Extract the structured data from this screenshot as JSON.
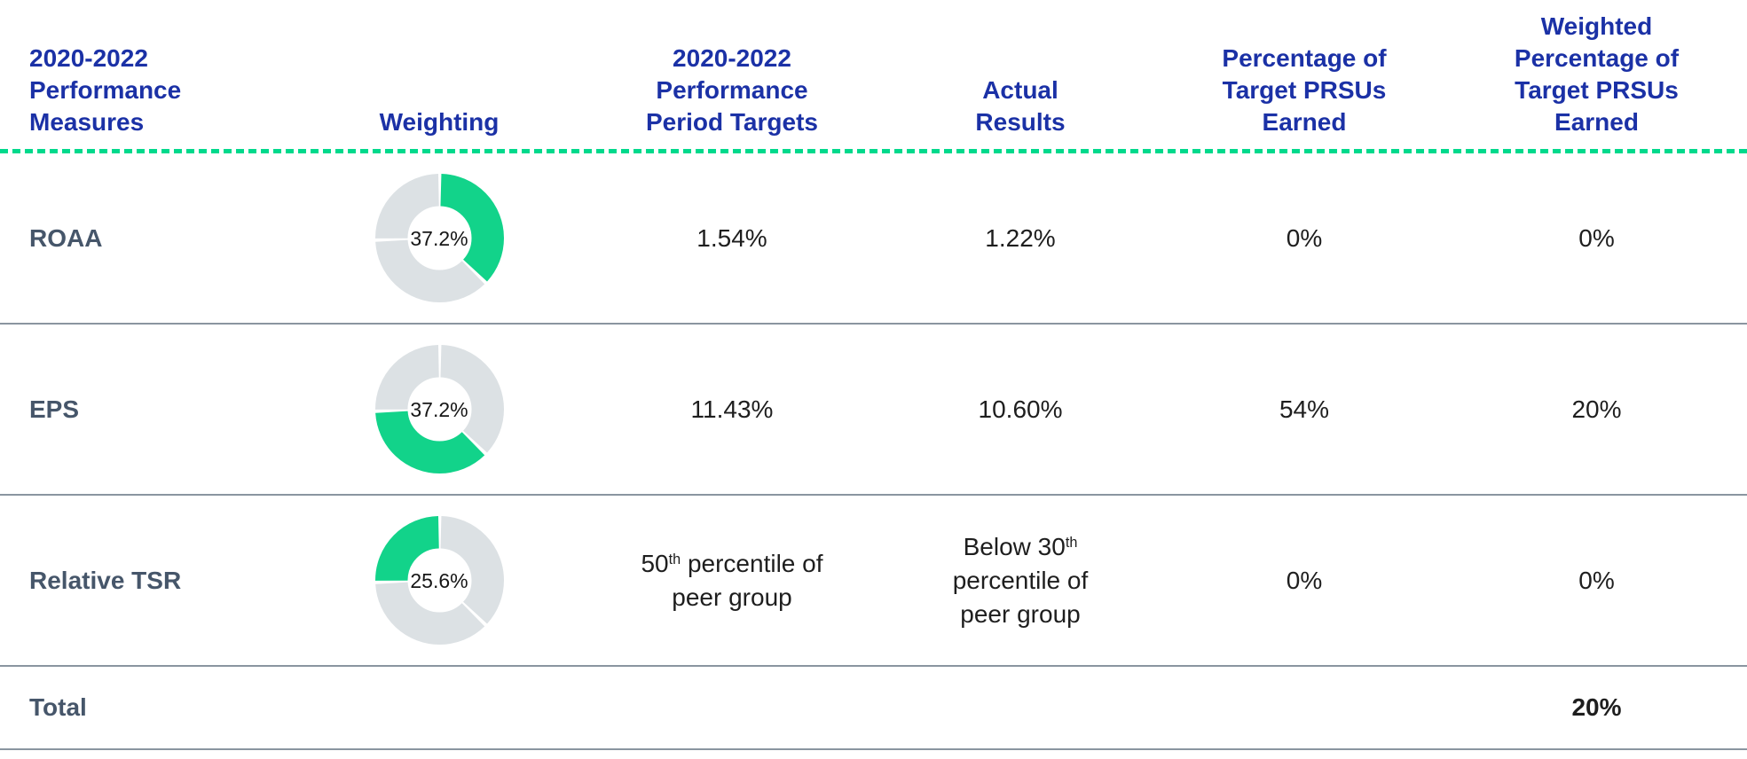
{
  "colors": {
    "header_blue": "#1B31A6",
    "slate_label": "#46566A",
    "body_text": "#1E1E1E",
    "donut_green": "#12D38A",
    "donut_gray": "#DCE1E4",
    "dash_green": "#00D98C",
    "divider_gray": "#8A95A0"
  },
  "header": {
    "columns": [
      {
        "id": "measures",
        "tokens": [
          "2020-2022",
          {
            "br": true
          },
          "Performance",
          {
            "br": true
          },
          "Measures"
        ]
      },
      {
        "id": "weighting",
        "tokens": [
          "Weighting"
        ]
      },
      {
        "id": "targets",
        "tokens": [
          "2020-2022",
          {
            "br": true
          },
          "Performance",
          {
            "br": true
          },
          "Period Targets"
        ]
      },
      {
        "id": "actual",
        "tokens": [
          "Actual",
          {
            "br": true
          },
          "Results"
        ]
      },
      {
        "id": "earned",
        "tokens": [
          "Percentage of",
          {
            "br": true
          },
          "Target PRSUs",
          {
            "br": true
          },
          "Earned"
        ]
      },
      {
        "id": "weighted",
        "tokens": [
          "Weighted",
          {
            "br": true
          },
          "Percentage of",
          {
            "br": true
          },
          "Target PRSUs",
          {
            "br": true
          },
          "Earned"
        ]
      }
    ]
  },
  "rows": [
    {
      "measure": "ROAA",
      "weighting": {
        "label": "37.2%",
        "percent": 37.2,
        "segment_index": 0
      },
      "target_tokens": [
        "1.54%"
      ],
      "actual_tokens": [
        "1.22%"
      ],
      "earned": "0%",
      "weighted": "0%"
    },
    {
      "measure": "EPS",
      "weighting": {
        "label": "37.2%",
        "percent": 37.2,
        "segment_index": 1
      },
      "target_tokens": [
        "11.43%"
      ],
      "actual_tokens": [
        "10.60%"
      ],
      "earned": "54%",
      "weighted": "20%"
    },
    {
      "measure": "Relative TSR",
      "weighting": {
        "label": "25.6%",
        "percent": 25.6,
        "segment_index": 2
      },
      "target_tokens": [
        "50",
        {
          "sup": "th"
        },
        " percentile of",
        {
          "br": true
        },
        "peer group"
      ],
      "actual_tokens": [
        "Below 30",
        {
          "sup": "th"
        },
        {
          "br": true
        },
        "percentile of",
        {
          "br": true
        },
        "peer group"
      ],
      "earned": "0%",
      "weighted": "0%"
    }
  ],
  "total": {
    "label": "Total",
    "weighted": "20%"
  },
  "donut": {
    "segments": [
      37.2,
      37.2,
      25.6
    ]
  },
  "chart_data": [
    {
      "type": "table",
      "columns": [
        "2020-2022 Performance Measures",
        "Weighting",
        "2020-2022 Performance Period Targets",
        "Actual Results",
        "Percentage of Target PRSUs Earned",
        "Weighted Percentage of Target PRSUs Earned"
      ],
      "rows": [
        [
          "ROAA",
          "37.2%",
          "1.54%",
          "1.22%",
          "0%",
          "0%"
        ],
        [
          "EPS",
          "37.2%",
          "11.43%",
          "10.60%",
          "54%",
          "20%"
        ],
        [
          "Relative TSR",
          "25.6%",
          "50th percentile of peer group",
          "Below 30th percentile of peer group",
          "0%",
          "0%"
        ],
        [
          "Total",
          "",
          "",
          "",
          "",
          "20%"
        ]
      ]
    },
    {
      "type": "pie",
      "labels": [
        "ROAA",
        "EPS",
        "Relative TSR"
      ],
      "values": [
        37.2,
        37.2,
        25.6
      ],
      "highlight_index": 0,
      "center_label": "37.2%"
    },
    {
      "type": "pie",
      "labels": [
        "ROAA",
        "EPS",
        "Relative TSR"
      ],
      "values": [
        37.2,
        37.2,
        25.6
      ],
      "highlight_index": 1,
      "center_label": "37.2%"
    },
    {
      "type": "pie",
      "labels": [
        "ROAA",
        "EPS",
        "Relative TSR"
      ],
      "values": [
        37.2,
        37.2,
        25.6
      ],
      "highlight_index": 2,
      "center_label": "25.6%"
    }
  ]
}
